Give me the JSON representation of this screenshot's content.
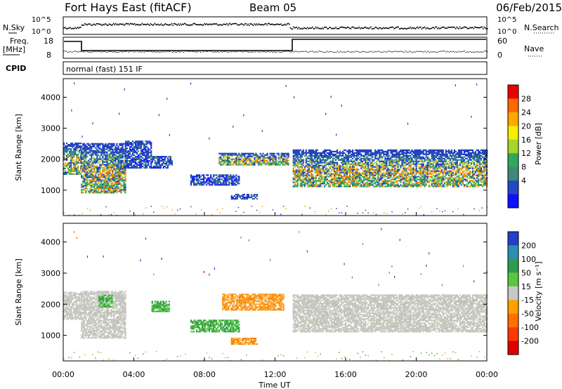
{
  "header": {
    "station": "Fort Hays East (fitACF)",
    "beam": "Beam 05",
    "date": "06/Feb/2015"
  },
  "top_panels": {
    "nsky_label": "N.Sky",
    "nsearch_label": "N.Search",
    "freq_label_1": "Freq.",
    "freq_label_2": "[MHz]",
    "nave_label": "Nave",
    "cpid_label": "CPID",
    "cpid_text": "normal (fast) 151 IF",
    "noise_ticks_left": [
      "10^5",
      "10^0"
    ],
    "noise_ticks_right": [
      "10^5",
      "10^0"
    ],
    "freq_ticks": [
      "18",
      "8"
    ],
    "nave_ticks": [
      "60",
      "0"
    ]
  },
  "colorbars": {
    "power": {
      "label": "Power [dB]",
      "ticks": [
        "28",
        "24",
        "20",
        "16",
        "12",
        "8",
        "4"
      ],
      "colors": [
        "#ee0000",
        "#ff6a00",
        "#ffa800",
        "#f5ee00",
        "#a4d62c",
        "#2fa85a",
        "#3d8a7a",
        "#2548c4",
        "#1010ff"
      ]
    },
    "velocity": {
      "label": "Velocity [m s⁻¹]",
      "ticks": [
        "200",
        "100",
        "50",
        "15",
        "-15",
        "-50",
        "-100",
        "-200"
      ],
      "colors": [
        "#2540c8",
        "#2b8fb4",
        "#2f9b4f",
        "#58c83a",
        "#c8c8c8",
        "#ffa000",
        "#ff7000",
        "#ff3800",
        "#e00000"
      ]
    }
  },
  "colors": {
    "grey": "#c0c0b8",
    "green": "#3fae3f",
    "light_green": "#6cd04a",
    "orange": "#f0a020",
    "dark_orange": "#ff8000",
    "blue": "#2040c0",
    "teal": "#3a8a80",
    "yellow_green": "#a8d040"
  },
  "chart_data": [
    {
      "type": "heatmap",
      "title": "Power [dB]",
      "xlabel": "",
      "ylabel": "Slant Range [km]",
      "xlim": [
        0,
        24
      ],
      "ylim": [
        180,
        4600
      ],
      "yticks": [
        1000,
        2000,
        3000,
        4000
      ],
      "echo_regions": [
        {
          "t0": 0.0,
          "t1": 1.0,
          "lo": 1500,
          "hi": 2500,
          "level": "mid"
        },
        {
          "t0": 1.0,
          "t1": 3.5,
          "lo": 900,
          "hi": 2500,
          "level": "mid"
        },
        {
          "t0": 3.5,
          "t1": 5.0,
          "lo": 1700,
          "hi": 2600,
          "level": "low"
        },
        {
          "t0": 5.0,
          "t1": 6.2,
          "lo": 1700,
          "hi": 2100,
          "level": "low"
        },
        {
          "t0": 7.2,
          "t1": 10.0,
          "lo": 1150,
          "hi": 1500,
          "level": "low"
        },
        {
          "t0": 8.8,
          "t1": 12.8,
          "lo": 1800,
          "hi": 2200,
          "level": "mid"
        },
        {
          "t0": 9.5,
          "t1": 11.0,
          "lo": 700,
          "hi": 850,
          "level": "low"
        },
        {
          "t0": 13.0,
          "t1": 24.0,
          "lo": 1100,
          "hi": 2300,
          "level": "mid"
        }
      ]
    },
    {
      "type": "heatmap",
      "title": "Velocity [m s⁻¹]",
      "xlabel": "Time UT",
      "ylabel": "Slant Range [km]",
      "xlim": [
        0,
        24
      ],
      "ylim": [
        180,
        4600
      ],
      "xticks": [
        "00:00",
        "04:00",
        "08:00",
        "12:00",
        "16:00",
        "20:00",
        "00:00"
      ],
      "yticks": [
        1000,
        2000,
        3000,
        4000
      ],
      "echo_regions": [
        {
          "t0": 0.0,
          "t1": 1.0,
          "lo": 1500,
          "hi": 2400,
          "vel": "grey"
        },
        {
          "t0": 1.0,
          "t1": 3.5,
          "lo": 900,
          "hi": 2400,
          "vel": "grey"
        },
        {
          "t0": 2.0,
          "t1": 2.8,
          "lo": 1900,
          "hi": 2300,
          "vel": "green"
        },
        {
          "t0": 5.0,
          "t1": 6.0,
          "lo": 1750,
          "hi": 2100,
          "vel": "green"
        },
        {
          "t0": 7.2,
          "t1": 10.0,
          "lo": 1100,
          "hi": 1500,
          "vel": "green"
        },
        {
          "t0": 9.0,
          "t1": 12.5,
          "lo": 1800,
          "hi": 2300,
          "vel": "orange"
        },
        {
          "t0": 9.5,
          "t1": 11.0,
          "lo": 700,
          "hi": 900,
          "vel": "orange"
        },
        {
          "t0": 13.0,
          "t1": 24.0,
          "lo": 1100,
          "hi": 2300,
          "vel": "grey"
        }
      ]
    }
  ]
}
